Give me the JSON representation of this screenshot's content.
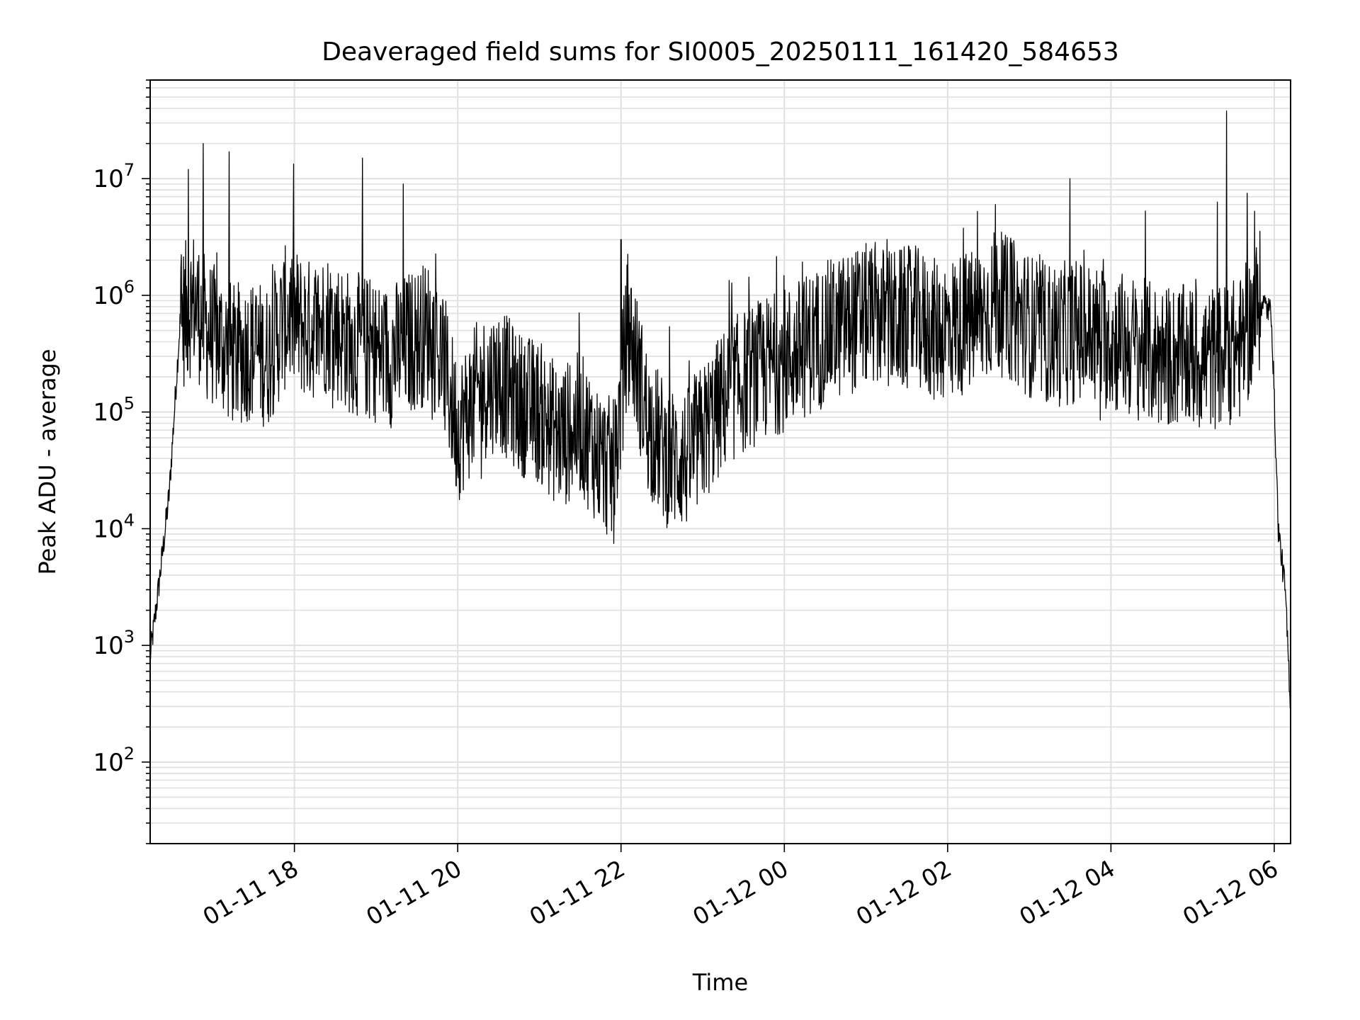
{
  "chart_data": {
    "type": "line",
    "title": "Deaveraged field sums for SI0005_20250111_161420_584653",
    "xlabel": "Time",
    "ylabel": "Peak ADU - average",
    "xlim": [
      "01-11 16:14",
      "01-12 06:12"
    ],
    "ylim": [
      20,
      70000000
    ],
    "yscale": "log",
    "grid": true,
    "line_color": "#000000",
    "grid_color": "#e0e0e0",
    "x_ticks": [
      "01-11 18",
      "01-11 20",
      "01-11 22",
      "01-12 00",
      "01-12 02",
      "01-12 04",
      "01-12 06"
    ],
    "y_ticks": [
      {
        "base": "10",
        "exp": "2",
        "value": 100
      },
      {
        "base": "10",
        "exp": "3",
        "value": 1000
      },
      {
        "base": "10",
        "exp": "4",
        "value": 10000
      },
      {
        "base": "10",
        "exp": "5",
        "value": 100000
      },
      {
        "base": "10",
        "exp": "6",
        "value": 1000000
      },
      {
        "base": "10",
        "exp": "7",
        "value": 10000000
      }
    ],
    "series": [
      {
        "name": "",
        "x": [
          "01-11 16:14",
          "01-11 16:20",
          "01-11 16:28",
          "01-11 16:36",
          "01-11 16:46",
          "01-11 16:56",
          "01-11 17:06",
          "01-11 17:16",
          "01-11 17:28",
          "01-11 17:40",
          "01-11 17:55",
          "01-11 18:10",
          "01-11 18:25",
          "01-11 18:40",
          "01-11 18:55",
          "01-11 19:10",
          "01-11 19:25",
          "01-11 19:40",
          "01-11 19:50",
          "01-11 20:00",
          "01-11 20:15",
          "01-11 20:30",
          "01-11 20:45",
          "01-11 21:00",
          "01-11 21:15",
          "01-11 21:30",
          "01-11 21:45",
          "01-11 21:55",
          "01-11 22:05",
          "01-11 22:20",
          "01-11 22:35",
          "01-11 22:50",
          "01-11 23:05",
          "01-11 23:20",
          "01-11 23:35",
          "01-11 23:50",
          "01-12 00:05",
          "01-12 00:20",
          "01-12 00:35",
          "01-12 00:50",
          "01-12 01:05",
          "01-12 01:20",
          "01-12 01:35",
          "01-12 01:50",
          "01-12 02:05",
          "01-12 02:20",
          "01-12 02:35",
          "01-12 02:50",
          "01-12 03:05",
          "01-12 03:20",
          "01-12 03:35",
          "01-12 03:50",
          "01-12 04:05",
          "01-12 04:20",
          "01-12 04:35",
          "01-12 04:50",
          "01-12 05:05",
          "01-12 05:20",
          "01-12 05:35",
          "01-12 05:50",
          "01-12 05:58",
          "01-12 06:03",
          "01-12 06:08",
          "01-12 06:12"
        ],
        "y": [
          800,
          3000,
          20000,
          600000,
          900000,
          500000,
          400000,
          300000,
          350000,
          300000,
          700000,
          500000,
          600000,
          400000,
          350000,
          300000,
          400000,
          500000,
          250000,
          70000,
          150000,
          200000,
          120000,
          100000,
          60000,
          80000,
          40000,
          30000,
          600000,
          80000,
          40000,
          40000,
          80000,
          150000,
          200000,
          250000,
          300000,
          400000,
          500000,
          600000,
          700000,
          600000,
          650000,
          500000,
          550000,
          600000,
          900000,
          700000,
          500000,
          450000,
          500000,
          450000,
          400000,
          350000,
          300000,
          300000,
          280000,
          300000,
          350000,
          900000,
          700000,
          10000,
          3000,
          300
        ]
      }
    ],
    "spikes": [
      {
        "x": "01-11 16:42",
        "y": 12000000
      },
      {
        "x": "01-11 16:53",
        "y": 20000000
      },
      {
        "x": "01-11 17:12",
        "y": 17000000
      },
      {
        "x": "01-11 18:50",
        "y": 15000000
      },
      {
        "x": "01-11 19:20",
        "y": 9000000
      },
      {
        "x": "01-11 22:00",
        "y": 3000000
      },
      {
        "x": "01-12 02:35",
        "y": 6000000
      },
      {
        "x": "01-12 03:30",
        "y": 10000000
      },
      {
        "x": "01-12 05:25",
        "y": 38000000
      },
      {
        "x": "01-12 05:40",
        "y": 7500000
      }
    ]
  }
}
